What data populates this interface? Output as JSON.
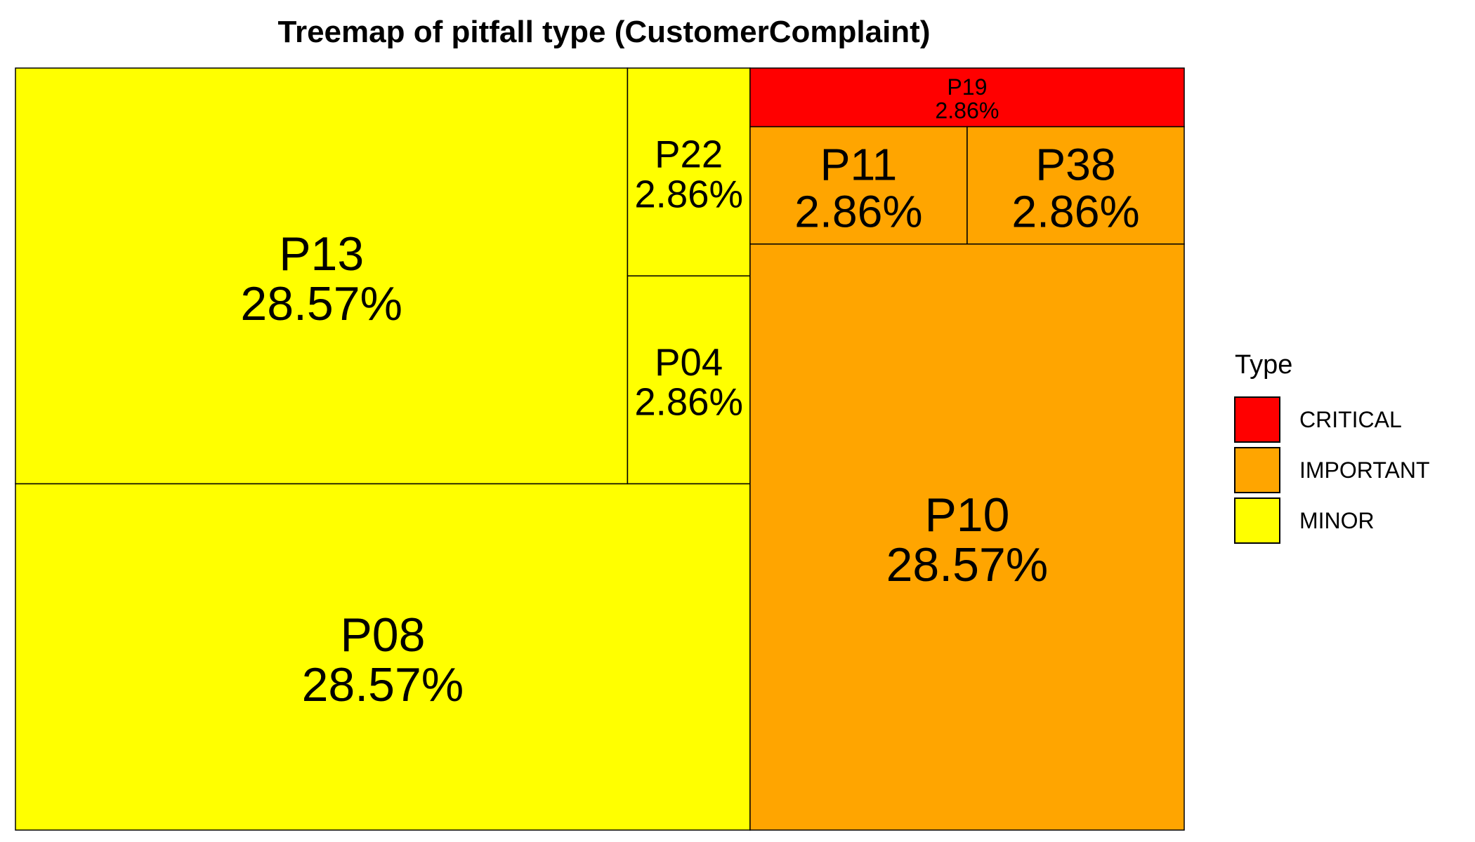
{
  "chart_data": {
    "type": "treemap",
    "title": "Treemap of pitfall type (CustomerComplaint)",
    "legend_title": "Type",
    "legend_position": "right",
    "categories": [
      {
        "name": "CRITICAL",
        "color": "#ff0000"
      },
      {
        "name": "IMPORTANT",
        "color": "#ffa500"
      },
      {
        "name": "MINOR",
        "color": "#ffff00"
      }
    ],
    "items": [
      {
        "label": "P13",
        "value_label": "28.57%",
        "value": 28.57,
        "type": "MINOR"
      },
      {
        "label": "P08",
        "value_label": "28.57%",
        "value": 28.57,
        "type": "MINOR"
      },
      {
        "label": "P22",
        "value_label": "2.86%",
        "value": 2.86,
        "type": "MINOR"
      },
      {
        "label": "P04",
        "value_label": "2.86%",
        "value": 2.86,
        "type": "MINOR"
      },
      {
        "label": "P10",
        "value_label": "28.57%",
        "value": 28.57,
        "type": "IMPORTANT"
      },
      {
        "label": "P11",
        "value_label": "2.86%",
        "value": 2.86,
        "type": "IMPORTANT"
      },
      {
        "label": "P38",
        "value_label": "2.86%",
        "value": 2.86,
        "type": "IMPORTANT"
      },
      {
        "label": "P19",
        "value_label": "2.86%",
        "value": 2.86,
        "type": "CRITICAL"
      }
    ]
  }
}
